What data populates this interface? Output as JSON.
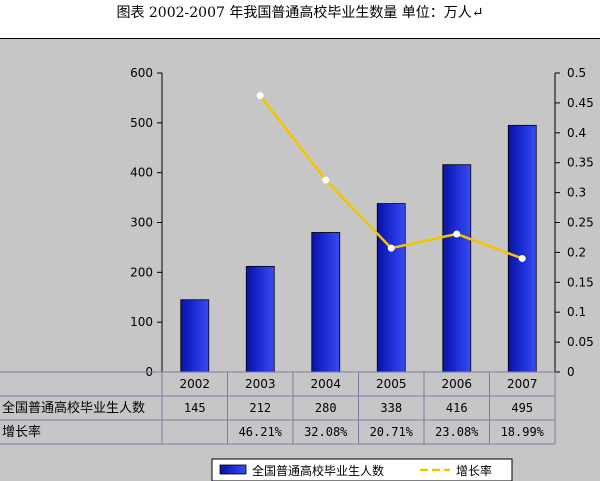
{
  "page_title": "图表 2002-2007 年我国普通高校毕业生数量 单位：万人↵",
  "chart_data": {
    "type": "bar",
    "categories": [
      "2002",
      "2003",
      "2004",
      "2005",
      "2006",
      "2007"
    ],
    "series": [
      {
        "name": "全国普通高校毕业生人数",
        "kind": "bar",
        "axis": "left",
        "color": "#1a2ad4",
        "values": [
          145,
          212,
          280,
          338,
          416,
          495
        ]
      },
      {
        "name": "增长率",
        "kind": "line",
        "axis": "right",
        "color": "#f5c400",
        "values": [
          null,
          0.4621,
          0.3208,
          0.2071,
          0.2308,
          0.1899
        ],
        "labels": [
          "",
          "46.21%",
          "32.08%",
          "20.71%",
          "23.08%",
          "18.99%"
        ]
      }
    ],
    "y_left": {
      "min": 0,
      "max": 600,
      "ticks": [
        "0",
        "100",
        "200",
        "300",
        "400",
        "500",
        "600"
      ]
    },
    "y_right": {
      "min": 0,
      "max": 0.5,
      "ticks": [
        "0",
        "0.05",
        "0.1",
        "0.15",
        "0.2",
        "0.25",
        "0.3",
        "0.35",
        "0.4",
        "0.45",
        "0.5"
      ]
    },
    "grid": false,
    "legend_position": "bottom",
    "data_table": true
  }
}
